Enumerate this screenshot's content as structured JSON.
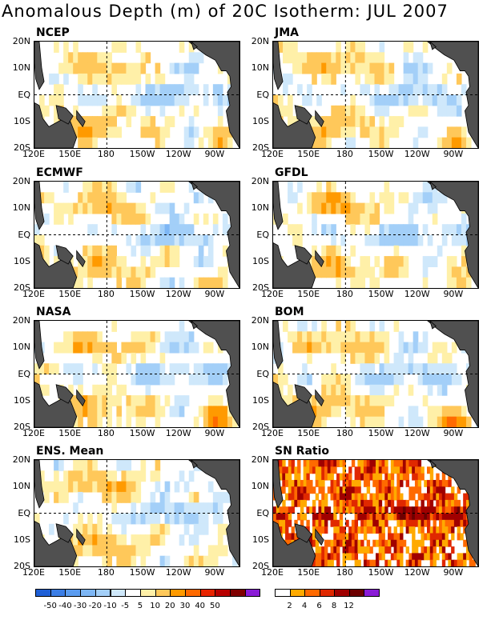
{
  "title": "Anomalous Depth (m) of 20C Isotherm: JUL 2007",
  "x_ticks": [
    "120E",
    "150E",
    "180",
    "150W",
    "120W",
    "90W"
  ],
  "y_ticks": [
    "20N",
    "10N",
    "EQ",
    "10S",
    "20S"
  ],
  "chart_data": [
    {
      "name": "NCEP",
      "type": "heatmap",
      "pattern": "anom",
      "variant": 0,
      "dateline": true,
      "equator": true
    },
    {
      "name": "JMA",
      "type": "heatmap",
      "pattern": "anom",
      "variant": 1,
      "dateline": true,
      "equator": true
    },
    {
      "name": "ECMWF",
      "type": "heatmap",
      "pattern": "anom",
      "variant": 2,
      "dateline": true,
      "equator": true
    },
    {
      "name": "GFDL",
      "type": "heatmap",
      "pattern": "anom",
      "variant": 3,
      "dateline": true,
      "equator": true
    },
    {
      "name": "NASA",
      "type": "heatmap",
      "pattern": "anom",
      "variant": 4,
      "dateline": true,
      "equator": true
    },
    {
      "name": "BOM",
      "type": "heatmap",
      "pattern": "anom",
      "variant": 5,
      "dateline": true,
      "equator": true
    },
    {
      "name": "ENS. Mean",
      "type": "heatmap",
      "pattern": "anom",
      "variant": 6,
      "dateline": true,
      "equator": true
    },
    {
      "name": "SN Ratio",
      "type": "heatmap",
      "pattern": "snr",
      "variant": 7,
      "dateline": true,
      "equator": true
    }
  ],
  "colorbars": {
    "anomaly": {
      "labels": [
        "-50",
        "-40",
        "-30",
        "-20",
        "-10",
        "-5",
        "5",
        "10",
        "20",
        "30",
        "40",
        "50"
      ],
      "colors": [
        "#1f5fd6",
        "#3b7ee6",
        "#5b9cf0",
        "#7db6f5",
        "#a3cff8",
        "#cfe8fb",
        "#ffffff",
        "#fff0a8",
        "#ffc85a",
        "#ff9a00",
        "#ff6a00",
        "#e82400",
        "#b80000",
        "#800000",
        "#8a1bd6"
      ]
    },
    "snr": {
      "labels": [
        "2",
        "4",
        "6",
        "8",
        "12"
      ],
      "colors": [
        "#ffffff",
        "#ffaa00",
        "#ff6a00",
        "#e02800",
        "#a00000",
        "#6e0000",
        "#8a1bd6"
      ]
    }
  },
  "land_color": "#505050"
}
